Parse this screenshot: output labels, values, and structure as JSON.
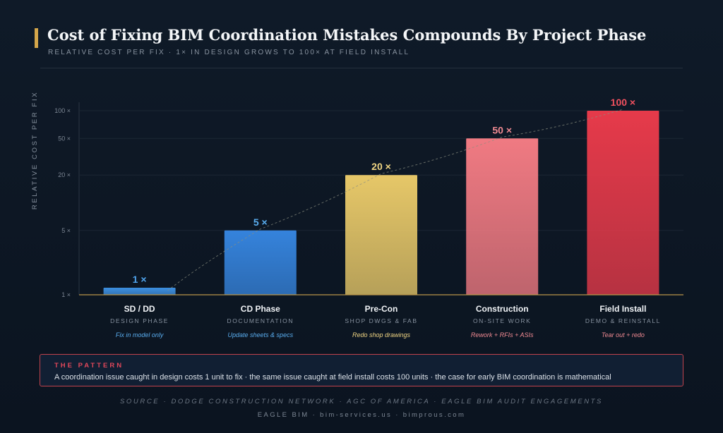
{
  "header": {
    "title": "Cost of Fixing BIM Coordination Mistakes Compounds By Project Phase",
    "subtitle": "RELATIVE COST PER FIX · 1× IN DESIGN GROWS TO 100× AT FIELD INSTALL",
    "accent_color": "#d4a64a"
  },
  "chart_data": {
    "type": "bar",
    "ylabel": "RELATIVE COST PER FIX",
    "yscale": "log",
    "ylim": [
      1,
      100
    ],
    "yticks": [
      {
        "value": 1,
        "label": "1 ×"
      },
      {
        "value": 5,
        "label": "5 ×"
      },
      {
        "value": 20,
        "label": "20 ×"
      },
      {
        "value": 50,
        "label": "50 ×"
      },
      {
        "value": 100,
        "label": "100 ×"
      }
    ],
    "categories": [
      "SD / DD",
      "CD Phase",
      "Pre-Con",
      "Construction",
      "Field Install"
    ],
    "phases": [
      "DESIGN PHASE",
      "DOCUMENTATION",
      "SHOP DWGS & FAB",
      "ON-SITE WORK",
      "DEMO & REINSTALL"
    ],
    "notes": [
      "Fix in model only",
      "Update sheets & specs",
      "Redo shop drawings",
      "Rework + RFIs + ASIs",
      "Tear out + redo"
    ],
    "values": [
      1,
      5,
      20,
      50,
      100
    ],
    "value_labels": [
      "1 ×",
      "5 ×",
      "20 ×",
      "50 ×",
      "100 ×"
    ],
    "colors": [
      "#3d8fe0",
      "#3583dc",
      "#e6c768",
      "#f07a82",
      "#e63a4a"
    ],
    "label_colors": [
      "#4fa3ec",
      "#5aaef0",
      "#f0d583",
      "#f08a92",
      "#f0505e"
    ],
    "note_colors": [
      "#5aaef0",
      "#5aaef0",
      "#f0d583",
      "#f08a92",
      "#f08a92"
    ],
    "trend_line": "dashed"
  },
  "pattern": {
    "label": "THE PATTERN",
    "text": "A coordination issue caught in design costs 1 unit to fix · the same issue caught at field install costs 100 units · the case for early BIM coordination is mathematical"
  },
  "footer": {
    "source": "SOURCE · DODGE CONSTRUCTION NETWORK · AGC OF AMERICA · EAGLE BIM AUDIT ENGAGEMENTS",
    "brand": "EAGLE BIM · bim-services.us · bimprous.com"
  }
}
